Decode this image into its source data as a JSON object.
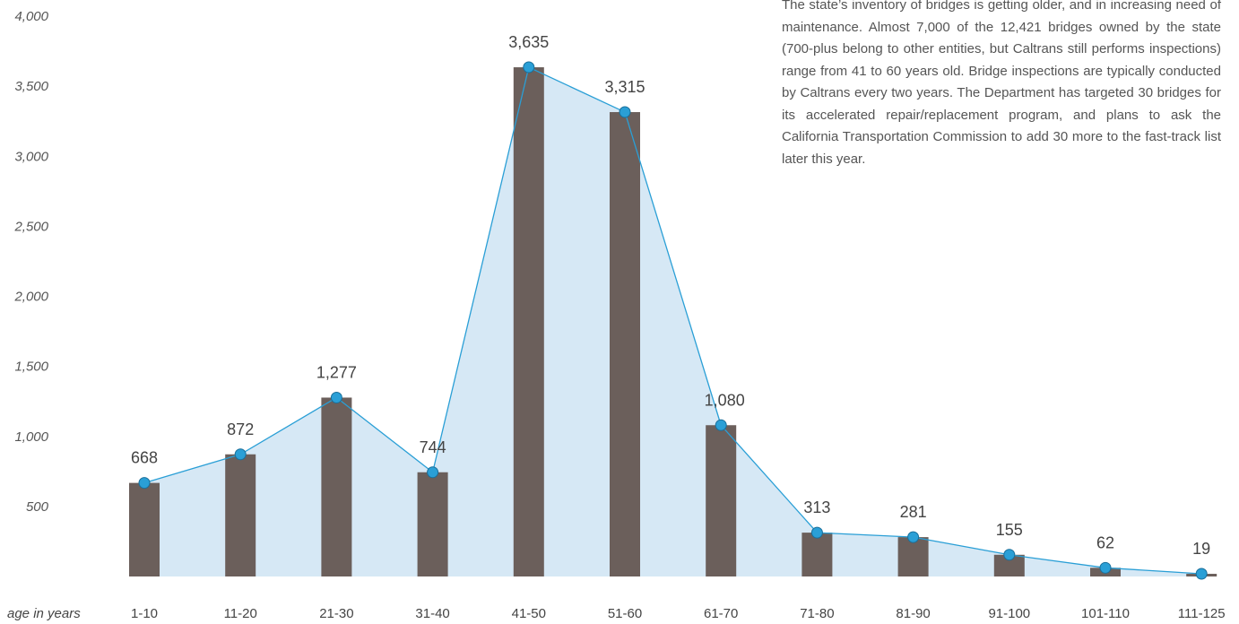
{
  "note": {
    "text": "The state’s inventory of bridges is getting older, and in increasing need of maintenance. Almost 7,000 of the 12,421 bridges owned by the state (700-plus belong to other entities, but Caltrans still performs inspections) range from 41 to 60 years old. Bridge inspections are typically conducted by Caltrans every two years. The Department has targeted 30 bridges for its accelerated repair/replacement program, and plans to ask the California Transportation Commission to add 30 more to the fast-track list later this year."
  },
  "chart_data": {
    "type": "bar",
    "title": "",
    "xlabel": "age in years",
    "ylabel": "",
    "categories": [
      "1-10",
      "11-20",
      "21-30",
      "31-40",
      "41-50",
      "51-60",
      "61-70",
      "71-80",
      "81-90",
      "91-100",
      "101-110",
      "111-125"
    ],
    "values": [
      668,
      872,
      1277,
      744,
      3635,
      3315,
      1080,
      313,
      281,
      155,
      62,
      19
    ],
    "value_labels": [
      "668",
      "872",
      "1,277",
      "744",
      "3,635",
      "3,315",
      "1,080",
      "313",
      "281",
      "155",
      "62",
      "19"
    ],
    "ylim": [
      0,
      4000
    ],
    "yticks": [
      500,
      1000,
      1500,
      2000,
      2500,
      3000,
      3500,
      4000
    ],
    "ytick_labels": [
      "500",
      "1,000",
      "1,500",
      "2,000",
      "2,500",
      "3,000",
      "3,500",
      "4,000"
    ],
    "overlay": "line with markers and shaded area through bar tops",
    "grid": false,
    "legend": "none",
    "colors": {
      "bar": "#6b5f5b",
      "line": "#2a9fd6",
      "area": "#d6e8f5",
      "marker": "#2a9fd6"
    }
  }
}
